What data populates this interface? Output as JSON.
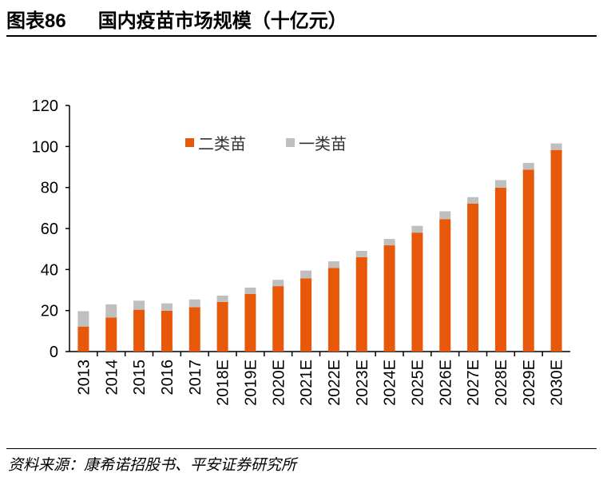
{
  "header": {
    "figure_no": "图表86",
    "title": "国内疫苗市场规模（十亿元）"
  },
  "source": "资料来源：康希诺招股书、平安证券研究所",
  "chart_data": {
    "type": "bar",
    "stacked": true,
    "title": "国内疫苗市场规模（十亿元）",
    "categories": [
      "2013",
      "2014",
      "2015",
      "2016",
      "2017",
      "2018E",
      "2019E",
      "2020E",
      "2021E",
      "2022E",
      "2023E",
      "2024E",
      "2025E",
      "2026E",
      "2027E",
      "2028E",
      "2029E",
      "2030E"
    ],
    "series": [
      {
        "name": "二类苗",
        "color": "#E8580A",
        "values": [
          12.2,
          16.6,
          20.4,
          19.9,
          21.6,
          24.2,
          28.1,
          31.9,
          35.7,
          40.8,
          46.0,
          51.8,
          58.0,
          64.6,
          72.2,
          79.9,
          88.7,
          98.3
        ]
      },
      {
        "name": "一类苗",
        "color": "#BFBFBF",
        "values": [
          7.5,
          6.4,
          4.4,
          3.6,
          3.8,
          3.1,
          3.1,
          3.1,
          3.8,
          3.2,
          3.1,
          3.1,
          3.3,
          3.8,
          3.1,
          3.7,
          3.3,
          3.2
        ]
      }
    ],
    "ylim": [
      0,
      120
    ],
    "yticks": [
      0,
      20,
      40,
      60,
      80,
      100,
      120
    ],
    "grid": false,
    "legend": "top-left inside"
  }
}
